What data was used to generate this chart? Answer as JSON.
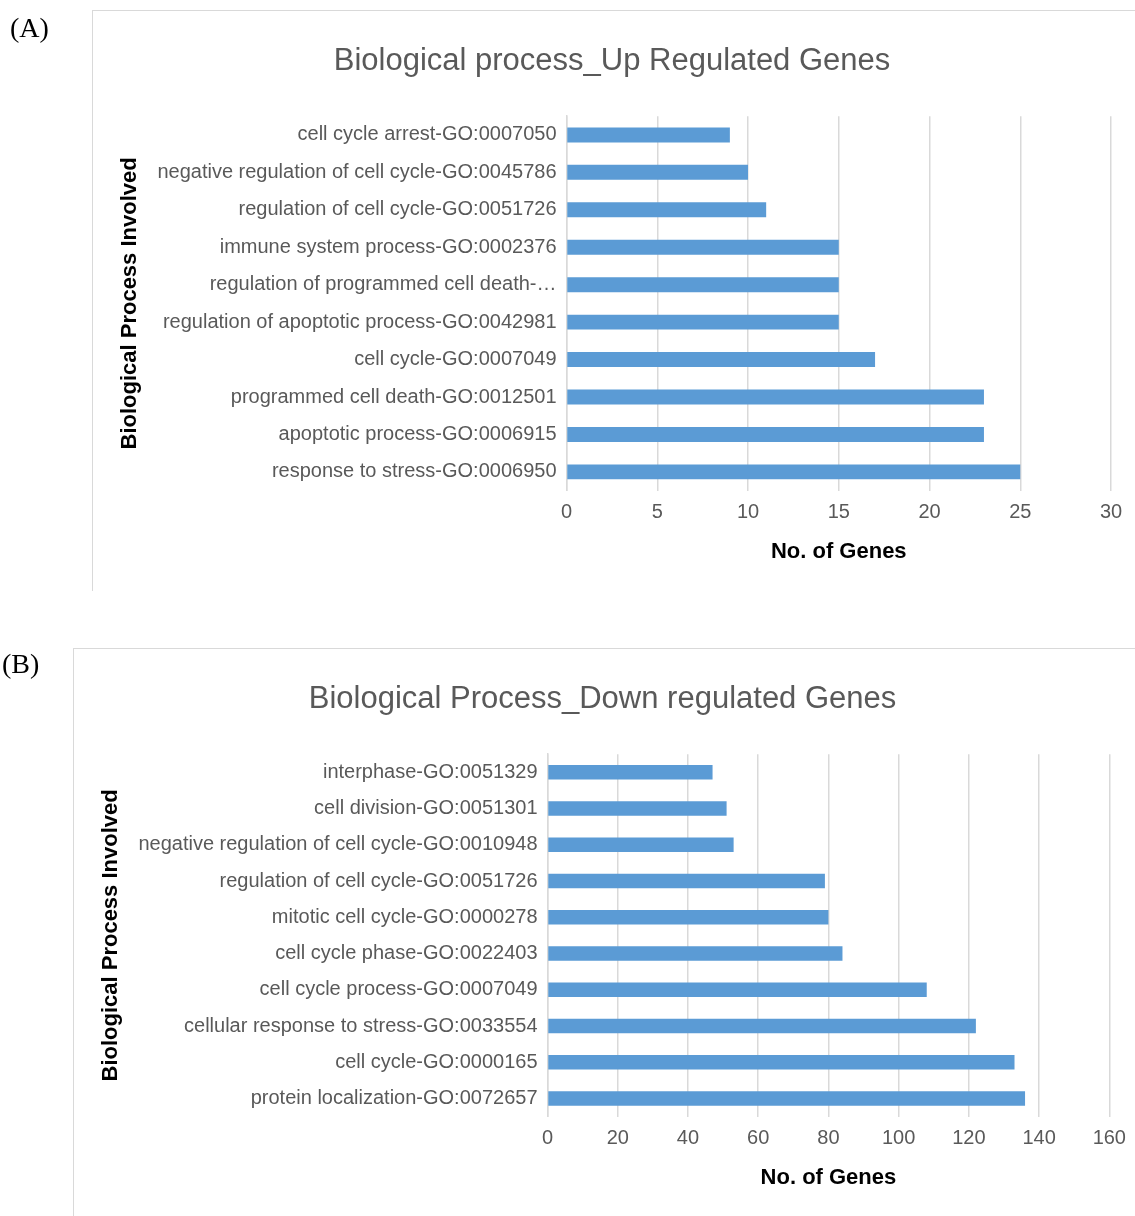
{
  "chart_data": [
    {
      "type": "bar",
      "orientation": "horizontal",
      "title": "Biological process_Up Regulated Genes",
      "xlabel": "No. of Genes",
      "ylabel": "Biological Process Involved",
      "annotations": [
        "(A)"
      ],
      "categories": [
        "cell cycle arrest-GO:0007050",
        "negative regulation of cell cycle-GO:0045786",
        "regulation of cell cycle-GO:0051726",
        "immune system process-GO:0002376",
        "regulation of programmed cell death-…",
        "regulation of apoptotic process-GO:0042981",
        "cell cycle-GO:0007049",
        "programmed cell death-GO:0012501",
        "apoptotic process-GO:0006915",
        "response to stress-GO:0006950"
      ],
      "values": [
        9,
        10,
        11,
        15,
        15,
        15,
        17,
        23,
        23,
        25
      ],
      "color": "#5b9bd5",
      "xlim": [
        0,
        30
      ],
      "xticks": [
        0,
        5,
        10,
        15,
        20,
        25,
        30
      ],
      "grid": "x",
      "legend": false
    },
    {
      "type": "bar",
      "orientation": "horizontal",
      "title": "Biological Process_Down regulated Genes",
      "xlabel": "No. of Genes",
      "ylabel": "Biological Process Involved",
      "annotations": [
        "(B)"
      ],
      "categories": [
        "interphase-GO:0051329",
        "cell division-GO:0051301",
        "negative regulation of cell cycle-GO:0010948",
        "regulation of cell cycle-GO:0051726",
        "mitotic cell cycle-GO:0000278",
        "cell cycle phase-GO:0022403",
        "cell cycle process-GO:0007049",
        "cellular response to stress-GO:0033554",
        "cell cycle-GO:0000165",
        "protein localization-GO:0072657"
      ],
      "values": [
        47,
        51,
        53,
        79,
        80,
        84,
        108,
        122,
        133,
        136
      ],
      "color": "#5b9bd5",
      "xlim": [
        0,
        160
      ],
      "xticks": [
        0,
        20,
        40,
        60,
        80,
        100,
        120,
        140,
        160
      ],
      "grid": "x",
      "legend": false
    }
  ]
}
